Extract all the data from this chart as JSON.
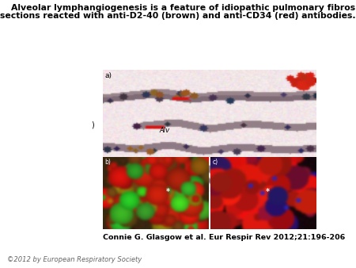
{
  "title_line1": "Alveolar lymphangiogenesis is a feature of idiopathic pulmonary fibrosis (IPF). a) Tissue",
  "title_line2": "sections reacted with anti-D2-40 (brown) and anti-CD34 (red) antibodies.",
  "citation": "Connie G. Glasgow et al. Eur Respir Rev 2012;21:196-206",
  "copyright": "©2012 by European Respiratory Society",
  "title_fontsize": 7.8,
  "citation_fontsize": 6.8,
  "copyright_fontsize": 6.0,
  "bg_color": "#ffffff",
  "panel_a_label": "a)",
  "panel_b_label": "b)",
  "panel_c_label": "c)",
  "panel_a_text": "Alv",
  "panel_a_sublabel": ")"
}
